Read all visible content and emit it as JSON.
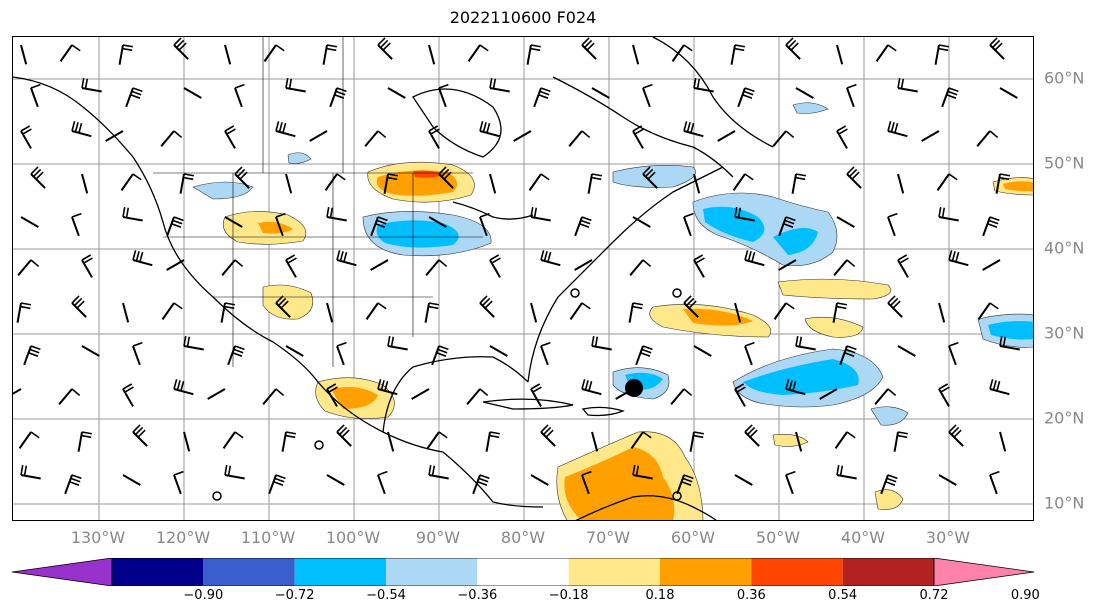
{
  "title": "2022110600 F024",
  "lon_labels": [
    "130°W",
    "120°W",
    "110°W",
    "100°W",
    "90°W",
    "80°W",
    "70°W",
    "60°W",
    "50°W",
    "40°W",
    "30°W"
  ],
  "lat_labels": [
    "60°N",
    "50°N",
    "40°N",
    "30°N",
    "20°N",
    "10°N"
  ],
  "colorbar": {
    "ticks": [
      "−0.90",
      "−0.72",
      "−0.54",
      "−0.36",
      "−0.18",
      "0.18",
      "0.36",
      "0.54",
      "0.72",
      "0.90"
    ],
    "colors": [
      "#9932cc",
      "#00008b",
      "#3a5fcd",
      "#00bfff",
      "#add8f5",
      "#ffffff",
      "#ffe88a",
      "#ffa000",
      "#ff4500",
      "#b22222",
      "#ff82ab"
    ]
  },
  "anomaly_colors": {
    "neg_strong": "#00bfff",
    "neg_weak": "#add8f5",
    "pos_weak": "#ffe88a",
    "pos_strong": "#ffa000",
    "pos_stronger": "#ff4500"
  }
}
